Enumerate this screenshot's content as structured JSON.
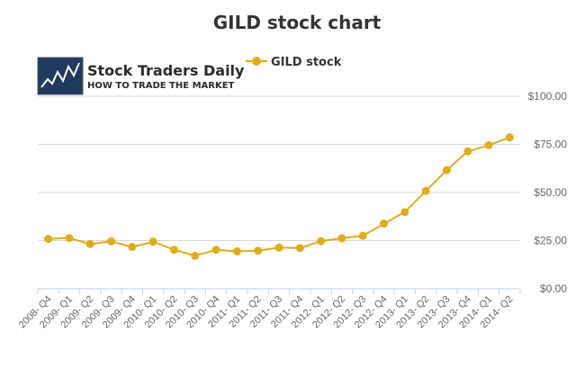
{
  "logo": {
    "name": "Stock Traders Daily",
    "tagline": "HOW TO TRADE THE MARKET"
  },
  "colors": {
    "series": "#e0ad1a",
    "grid": "#d8d8d8",
    "axis": "#c0d0e0",
    "text": "#333333",
    "tick": "#666666"
  },
  "chart_data": {
    "type": "line",
    "title": "GILD stock chart",
    "xlabel": "",
    "ylabel": "",
    "ylim": [
      0,
      100
    ],
    "y_ticks": [
      0,
      25,
      50,
      75,
      100
    ],
    "y_tick_labels": [
      "$0.00",
      "$25.00",
      "$50.00",
      "$75.00",
      "$100.00"
    ],
    "y_axis_side": "right",
    "grid": true,
    "legend_position": "top",
    "categories": [
      "2008- Q4",
      "2009- Q1",
      "2009- Q2",
      "2009- Q3",
      "2009- Q4",
      "2010- Q1",
      "2010- Q2",
      "2010- Q3",
      "2010- Q4",
      "2011- Q1",
      "2011- Q2",
      "2011- Q3",
      "2011- Q4",
      "2012- Q1",
      "2012- Q2",
      "2012- Q3",
      "2012- Q4",
      "2013- Q1",
      "2013- Q2",
      "2013- Q3",
      "2013- Q4",
      "2014- Q1",
      "2014- Q2"
    ],
    "series": [
      {
        "name": "GILD stock",
        "values": [
          25.9,
          26.3,
          23.2,
          24.6,
          21.7,
          24.4,
          20.2,
          17.1,
          20.2,
          19.4,
          19.7,
          21.3,
          21.1,
          24.7,
          26.2,
          27.5,
          33.8,
          39.8,
          50.8,
          61.6,
          71.3,
          74.6,
          78.6
        ]
      }
    ]
  }
}
